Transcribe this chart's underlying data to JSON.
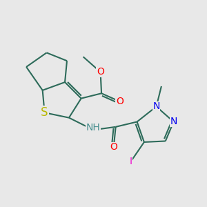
{
  "bg_color": "#e8e8e8",
  "bond_color": "#2d6b5a",
  "bond_width": 1.5,
  "atom_colors": {
    "S": "#b8b800",
    "O": "#ff0000",
    "N_blue": "#0000ee",
    "N_nh": "#4a9090",
    "I": "#ee00cc",
    "C": "#2d6b5a"
  },
  "font_size": 10
}
